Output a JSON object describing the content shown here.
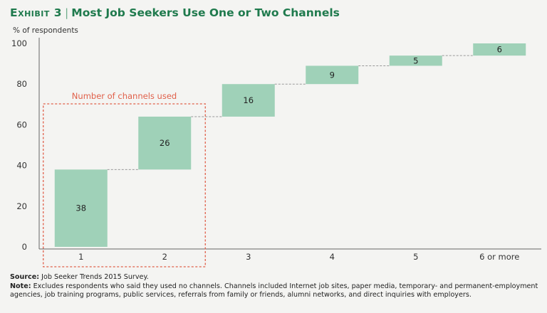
{
  "header": {
    "exhibit": "Exhibit 3",
    "separator": "|",
    "title": "Most Job Seekers Use One or Two Channels"
  },
  "colors": {
    "bar": "#9fd1b8",
    "title": "#1f7a4d",
    "highlight": "#e0604a",
    "connector": "#999999"
  },
  "chart_data": {
    "type": "bar",
    "subtype": "waterfall",
    "ylabel": "% of respondents",
    "ylim": [
      0,
      100
    ],
    "yticks": [
      0,
      20,
      40,
      60,
      80,
      100
    ],
    "categories": [
      "1",
      "2",
      "3",
      "4",
      "5",
      "6 or more"
    ],
    "values": [
      38,
      26,
      16,
      9,
      5,
      6
    ],
    "grid": false,
    "annotation": {
      "label": "Number of channels used",
      "categories": [
        "1",
        "2"
      ]
    }
  },
  "footer": {
    "source_label": "Source:",
    "source_text": "Job Seeker Trends 2015 Survey.",
    "note_label": "Note:",
    "note_text": "Excludes respondents who said they used no channels. Channels included Internet job sites, paper media, temporary- and permanent-employment agencies, job training programs, public services, referrals from family or friends, alumni networks, and direct inquiries with employers."
  }
}
